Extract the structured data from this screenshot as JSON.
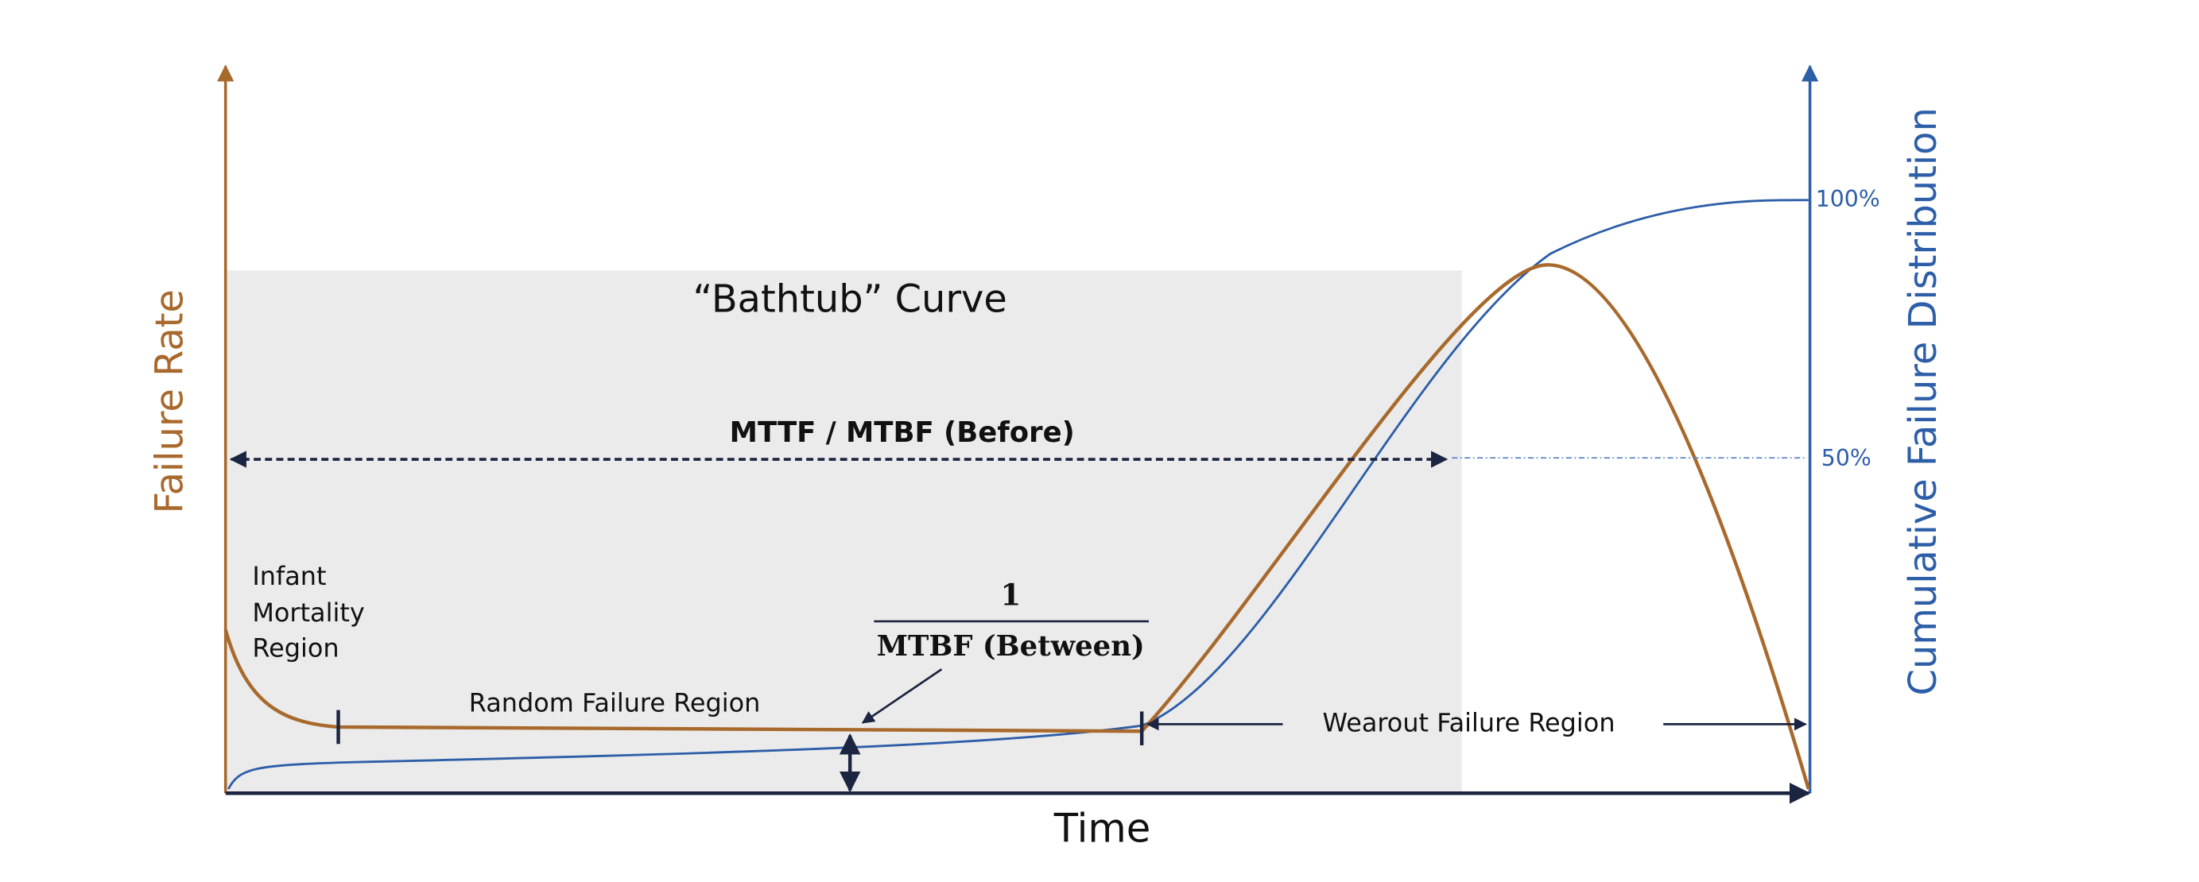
{
  "title": "“Bathtub” Curve",
  "axes": {
    "left": "Failure Rate",
    "right": "Cumulative Failure Distribution",
    "bottom": "Time",
    "right_ticks": [
      "100%",
      "50%"
    ]
  },
  "annotations": {
    "mttf": "MTTF / MTBF (Before)",
    "fraction_numerator": "1",
    "fraction_denominator": "MTBF (Between)"
  },
  "regions": {
    "infant": [
      "Infant",
      "Mortality",
      "Region"
    ],
    "random": "Random Failure Region",
    "wearout": "Wearout Failure Region"
  }
}
